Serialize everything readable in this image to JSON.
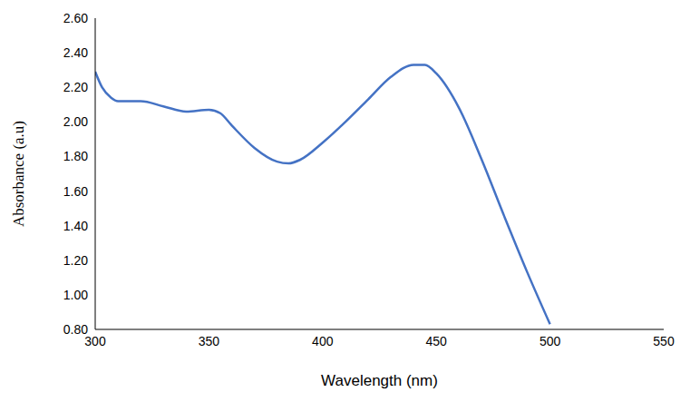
{
  "chart_data": {
    "type": "line",
    "x_label": "Wavelength (nm)",
    "y_label": "Absorbance (a.u)",
    "x": [
      300,
      303,
      307,
      310,
      320,
      330,
      340,
      350,
      355,
      360,
      370,
      380,
      385,
      390,
      400,
      410,
      420,
      430,
      440,
      445,
      450,
      460,
      470,
      480,
      490,
      500
    ],
    "values": [
      2.29,
      2.2,
      2.14,
      2.12,
      2.12,
      2.09,
      2.06,
      2.07,
      2.05,
      1.98,
      1.85,
      1.77,
      1.76,
      1.78,
      1.88,
      2.0,
      2.13,
      2.26,
      2.33,
      2.33,
      2.28,
      2.08,
      1.78,
      1.45,
      1.13,
      0.83
    ],
    "color": "#4472c4",
    "marker": "none",
    "grid": false,
    "xlim": [
      300,
      550
    ],
    "xticks": [
      300,
      350,
      400,
      450,
      500,
      550
    ],
    "ylim": [
      0.8,
      2.6
    ],
    "yticks": [
      {
        "value": 0.8,
        "label": "0.80"
      },
      {
        "value": 1.0,
        "label": "1.00"
      },
      {
        "value": 1.2,
        "label": "1.20"
      },
      {
        "value": 1.4,
        "label": "1.40"
      },
      {
        "value": 1.6,
        "label": "1.60"
      },
      {
        "value": 1.8,
        "label": "1.80"
      },
      {
        "value": 2.0,
        "label": "2.00"
      },
      {
        "value": 2.2,
        "label": "2.20"
      },
      {
        "value": 2.4,
        "label": "2.40"
      },
      {
        "value": 2.6,
        "label": "2.60"
      }
    ]
  }
}
